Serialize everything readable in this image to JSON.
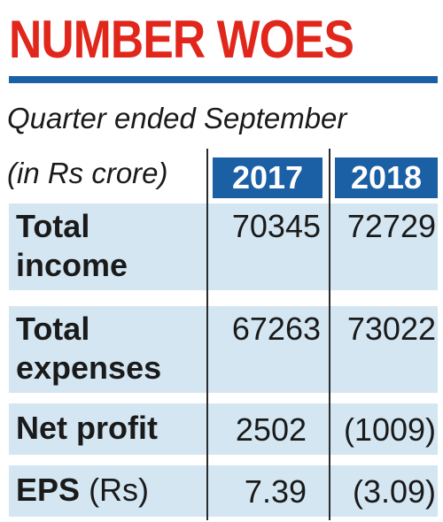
{
  "title": "NUMBER WOES",
  "subtitle": "Quarter ended September",
  "unit_label": "(in Rs crore)",
  "colors": {
    "title": "#e1261c",
    "accent": "#1b5fa5",
    "row_fill": "#d3e6f2"
  },
  "chart_data": {
    "type": "table",
    "title": "NUMBER WOES",
    "subtitle": "Quarter ended September",
    "unit": "(in Rs crore)",
    "columns": [
      "2017",
      "2018"
    ],
    "rows": [
      {
        "label_lines": [
          "Total",
          "income"
        ],
        "values": [
          "70345",
          "72729"
        ]
      },
      {
        "label_lines": [
          "Total",
          "expenses"
        ],
        "values": [
          "67263",
          "73022"
        ]
      },
      {
        "label_lines": [
          "Net profit"
        ],
        "values": [
          "2502",
          "(1009)"
        ]
      },
      {
        "label_main": "EPS",
        "label_unit": "(Rs)",
        "values": [
          "7.39",
          "(3.09)"
        ]
      }
    ]
  }
}
